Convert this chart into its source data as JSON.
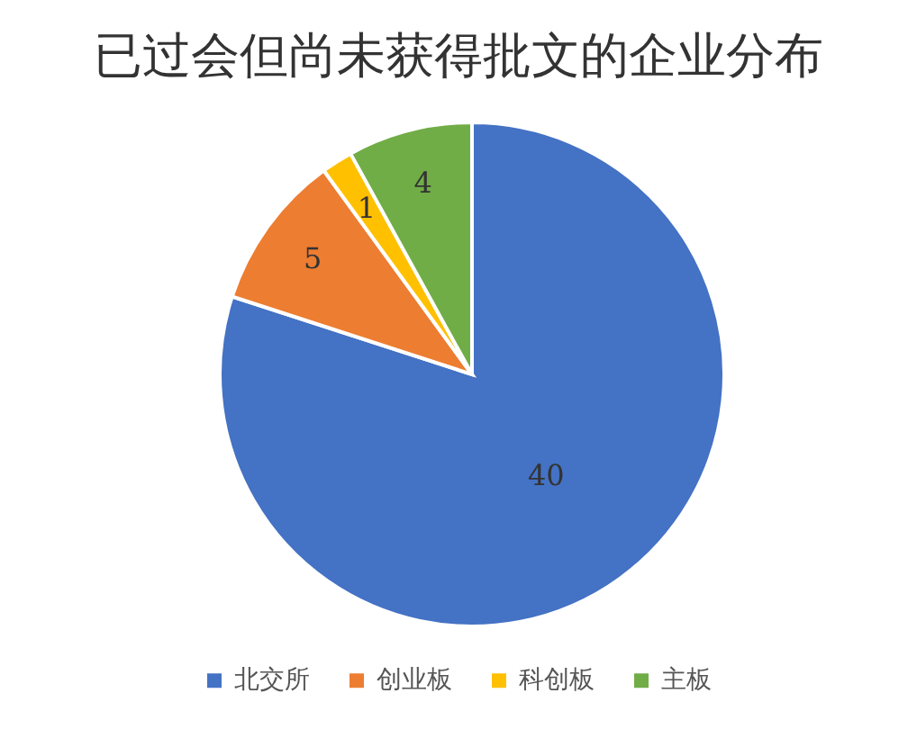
{
  "chart_data": {
    "type": "pie",
    "title": "已过会但尚未获得批文的企业分布",
    "categories": [
      "北交所",
      "创业板",
      "科创板",
      "主板"
    ],
    "values": [
      40,
      5,
      1,
      4
    ],
    "colors": [
      "#4472c4",
      "#ed7d31",
      "#ffc000",
      "#70ad47"
    ],
    "data_labels": true,
    "legend": "bottom"
  }
}
